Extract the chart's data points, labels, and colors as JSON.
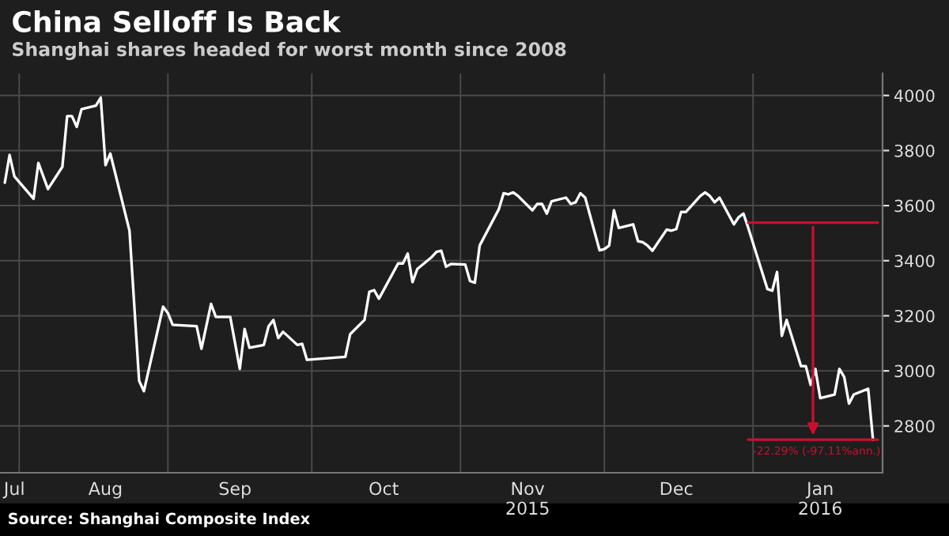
{
  "chart_data": {
    "type": "line",
    "title": "China Selloff Is Back",
    "subtitle": "Shanghai shares headed for worst month since 2008",
    "x": [
      "2015-07-29",
      "2015-07-30",
      "2015-07-31",
      "2015-08-04",
      "2015-08-05",
      "2015-08-07",
      "2015-08-10",
      "2015-08-11",
      "2015-08-12",
      "2015-08-13",
      "2015-08-14",
      "2015-08-17",
      "2015-08-18",
      "2015-08-19",
      "2015-08-20",
      "2015-08-24",
      "2015-08-26",
      "2015-08-27",
      "2015-08-31",
      "2015-09-01",
      "2015-09-02",
      "2015-09-07",
      "2015-09-08",
      "2015-09-10",
      "2015-09-11",
      "2015-09-14",
      "2015-09-16",
      "2015-09-17",
      "2015-09-18",
      "2015-09-21",
      "2015-09-22",
      "2015-09-23",
      "2015-09-24",
      "2015-09-25",
      "2015-09-28",
      "2015-09-29",
      "2015-09-30",
      "2015-10-08",
      "2015-10-09",
      "2015-10-12",
      "2015-10-13",
      "2015-10-14",
      "2015-10-15",
      "2015-10-19",
      "2015-10-20",
      "2015-10-21",
      "2015-10-22",
      "2015-10-23",
      "2015-10-26",
      "2015-10-27",
      "2015-10-28",
      "2015-10-29",
      "2015-10-30",
      "2015-11-02",
      "2015-11-03",
      "2015-11-04",
      "2015-11-05",
      "2015-11-09",
      "2015-11-10",
      "2015-11-11",
      "2015-11-12",
      "2015-11-13",
      "2015-11-16",
      "2015-11-17",
      "2015-11-18",
      "2015-11-19",
      "2015-11-20",
      "2015-11-23",
      "2015-11-24",
      "2015-11-25",
      "2015-11-26",
      "2015-11-27",
      "2015-11-30",
      "2015-12-01",
      "2015-12-02",
      "2015-12-03",
      "2015-12-04",
      "2015-12-07",
      "2015-12-08",
      "2015-12-09",
      "2015-12-10",
      "2015-12-11",
      "2015-12-14",
      "2015-12-15",
      "2015-12-16",
      "2015-12-17",
      "2015-12-18",
      "2015-12-21",
      "2015-12-22",
      "2015-12-23",
      "2015-12-24",
      "2015-12-25",
      "2015-12-28",
      "2015-12-29",
      "2015-12-30",
      "2015-12-31",
      "2016-01-04",
      "2016-01-05",
      "2016-01-06",
      "2016-01-07",
      "2016-01-08",
      "2016-01-11",
      "2016-01-12",
      "2016-01-13",
      "2016-01-14",
      "2016-01-15",
      "2016-01-18",
      "2016-01-19",
      "2016-01-20",
      "2016-01-21",
      "2016-01-22",
      "2016-01-25",
      "2016-01-26"
    ],
    "series": [
      {
        "color": "#ffffff",
        "values": [
          3683,
          3784,
          3706,
          3625,
          3755,
          3660,
          3741,
          3925,
          3925,
          3886,
          3950,
          3963,
          3992,
          3747,
          3789,
          3509,
          2964,
          2926,
          3233,
          3210,
          3167,
          3162,
          3080,
          3243,
          3196,
          3196,
          3007,
          3152,
          3084,
          3094,
          3162,
          3185,
          3119,
          3142,
          3094,
          3098,
          3040,
          3051,
          3133,
          3185,
          3287,
          3293,
          3262,
          3390,
          3390,
          3426,
          3322,
          3370,
          3413,
          3432,
          3436,
          3378,
          3388,
          3386,
          3326,
          3320,
          3455,
          3587,
          3645,
          3641,
          3648,
          3635,
          3583,
          3606,
          3606,
          3571,
          3616,
          3629,
          3606,
          3612,
          3645,
          3629,
          3438,
          3442,
          3455,
          3583,
          3519,
          3532,
          3471,
          3467,
          3455,
          3436,
          3513,
          3509,
          3515,
          3577,
          3577,
          3635,
          3648,
          3635,
          3612,
          3629,
          3532,
          3558,
          3571,
          3519,
          3297,
          3291,
          3359,
          3127,
          3185,
          3017,
          3017,
          2949,
          3007,
          2901,
          2914,
          3007,
          2978,
          2881,
          2914,
          2935,
          2750
        ]
      }
    ],
    "xlim": [
      "2015-07-28",
      "2016-01-28"
    ],
    "ylim": [
      2630,
      4080
    ],
    "xticks": [
      {
        "value": "2015-08-01",
        "label": null
      },
      {
        "value": "2015-09-01",
        "label": null
      },
      {
        "value": "2015-10-01",
        "label": null
      },
      {
        "value": "2015-11-01",
        "label": null
      },
      {
        "value": "2015-12-01",
        "label": null
      },
      {
        "value": "2016-01-01",
        "label": null
      },
      {
        "value": "2015-07-31",
        "label": "Jul"
      },
      {
        "value": "2015-08-19",
        "label": "Aug"
      },
      {
        "value": "2015-09-15",
        "label": "Sep"
      },
      {
        "value": "2015-10-16",
        "label": "Oct"
      },
      {
        "value": "2015-11-15",
        "label": "Nov\n2015"
      },
      {
        "value": "2015-12-16",
        "label": "Dec"
      },
      {
        "value": "2016-01-15",
        "label": "Jan\n2016"
      }
    ],
    "yticks": [
      2800,
      3000,
      3200,
      3400,
      3600,
      3800,
      4000
    ],
    "grid": true,
    "legend": false,
    "ref_lines": [
      {
        "axis": "y",
        "value": 3538,
        "color": "#c8102e"
      },
      {
        "axis": "y",
        "value": 2750,
        "color": "#c8102e"
      }
    ],
    "annotations": [
      {
        "text": "-22.29% (-97.11%ann.)",
        "x": "2015-12-31",
        "y": 2750
      },
      "Source: Shanghai Composite Index"
    ]
  }
}
